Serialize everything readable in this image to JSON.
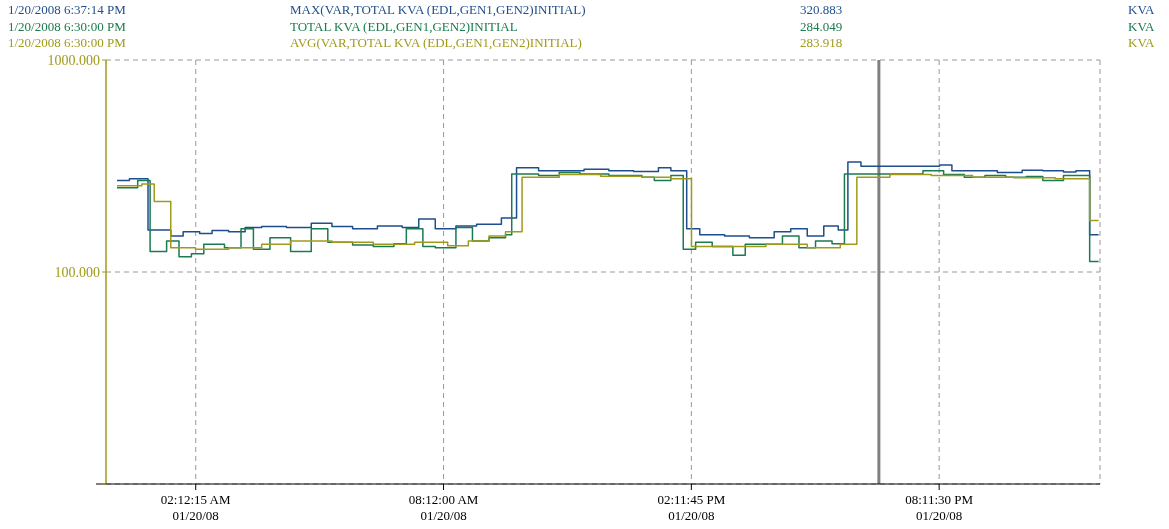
{
  "chart_data": {
    "type": "step",
    "legend": "top",
    "grid": true,
    "log": "y",
    "annotations": [
      "1/20/2008 6:37:14 PM",
      "320.883",
      "KVA",
      "1/20/2008 6:30:00 PM",
      "284.049",
      "KVA",
      "1/20/2008 6:30:00 PM",
      "283.918",
      "KVA"
    ],
    "xlim": [
      "2008-01-20T00:02",
      "2008-01-21T00:05"
    ],
    "ylim": [
      10,
      1000
    ],
    "xticks": [
      {
        "value": "2008-01-20T02:12:15",
        "label": "02:12:15 AM\n01/20/08"
      },
      {
        "value": "2008-01-20T08:12:00",
        "label": "08:12:00 AM\n01/20/08"
      },
      {
        "value": "2008-01-20T14:11:45",
        "label": "02:11:45 PM\n01/20/08"
      },
      {
        "value": "2008-01-20T20:11:30",
        "label": "08:11:30 PM\n01/20/08"
      }
    ],
    "yticks": [
      {
        "value": 10,
        "label": null
      },
      {
        "value": 100,
        "label": "100.000"
      },
      {
        "value": 1000,
        "label": "1000.000"
      }
    ],
    "ref_lines": [
      {
        "axis": "x",
        "value": "2008-01-20T18:44",
        "color": "#808080"
      }
    ],
    "series": [
      {
        "name": "MAX(VAR,TOTAL KVA (EDL,GEN1,GEN2)INITIAL)",
        "color": "#1f4e8c",
        "x": [
          "2008-01-20T00:18",
          "2008-01-20T00:36",
          "2008-01-20T00:54",
          "2008-01-20T01:03",
          "2008-01-20T01:36",
          "2008-01-20T01:54",
          "2008-01-20T02:18",
          "2008-01-20T02:36",
          "2008-01-20T03:00",
          "2008-01-20T03:24",
          "2008-01-20T03:48",
          "2008-01-20T04:24",
          "2008-01-20T05:00",
          "2008-01-20T05:30",
          "2008-01-20T06:00",
          "2008-01-20T06:36",
          "2008-01-20T07:12",
          "2008-01-20T07:36",
          "2008-01-20T08:00",
          "2008-01-20T08:30",
          "2008-01-20T09:00",
          "2008-01-20T09:36",
          "2008-01-20T09:58",
          "2008-01-20T10:30",
          "2008-01-20T11:00",
          "2008-01-20T11:36",
          "2008-01-20T12:12",
          "2008-01-20T12:48",
          "2008-01-20T13:24",
          "2008-01-20T13:42",
          "2008-01-20T14:05",
          "2008-01-20T14:24",
          "2008-01-20T15:00",
          "2008-01-20T15:36",
          "2008-01-20T16:12",
          "2008-01-20T16:36",
          "2008-01-20T17:00",
          "2008-01-20T17:24",
          "2008-01-20T17:45",
          "2008-01-20T17:59",
          "2008-01-20T18:18",
          "2008-01-20T18:54",
          "2008-01-20T19:36",
          "2008-01-20T20:12",
          "2008-01-20T20:30",
          "2008-01-20T21:00",
          "2008-01-20T21:36",
          "2008-01-20T22:12",
          "2008-01-20T22:42",
          "2008-01-20T23:12",
          "2008-01-20T23:30",
          "2008-01-20T23:50",
          "2008-01-21T00:03"
        ],
        "values": [
          270,
          275,
          275,
          158,
          148,
          155,
          152,
          157,
          155,
          162,
          164,
          162,
          170,
          164,
          160,
          165,
          162,
          178,
          160,
          165,
          168,
          180,
          310,
          300,
          300,
          305,
          300,
          298,
          310,
          300,
          160,
          150,
          148,
          145,
          155,
          160,
          148,
          165,
          158,
          330,
          315,
          315,
          315,
          320,
          300,
          300,
          295,
          302,
          300,
          296,
          300,
          150,
          150
        ]
      },
      {
        "name": "TOTAL KVA (EDL,GEN1,GEN2)INITIAL",
        "color": "#1a7a50",
        "x": [
          "2008-01-20T00:18",
          "2008-01-20T00:48",
          "2008-01-20T01:06",
          "2008-01-20T01:30",
          "2008-01-20T01:48",
          "2008-01-20T02:06",
          "2008-01-20T02:24",
          "2008-01-20T02:54",
          "2008-01-20T03:18",
          "2008-01-20T03:36",
          "2008-01-20T04:00",
          "2008-01-20T04:30",
          "2008-01-20T05:00",
          "2008-01-20T05:24",
          "2008-01-20T06:00",
          "2008-01-20T06:30",
          "2008-01-20T07:00",
          "2008-01-20T07:18",
          "2008-01-20T07:42",
          "2008-01-20T08:00",
          "2008-01-20T08:30",
          "2008-01-20T08:54",
          "2008-01-20T09:18",
          "2008-01-20T09:42",
          "2008-01-20T09:51",
          "2008-01-20T10:30",
          "2008-01-20T11:00",
          "2008-01-20T11:30",
          "2008-01-20T12:12",
          "2008-01-20T13:00",
          "2008-01-20T13:18",
          "2008-01-20T13:42",
          "2008-01-20T14:00",
          "2008-01-20T14:18",
          "2008-01-20T14:42",
          "2008-01-20T15:12",
          "2008-01-20T15:30",
          "2008-01-20T16:00",
          "2008-01-20T16:24",
          "2008-01-20T16:48",
          "2008-01-20T17:12",
          "2008-01-20T17:36",
          "2008-01-20T17:54",
          "2008-01-20T18:30",
          "2008-01-20T19:12",
          "2008-01-20T19:48",
          "2008-01-20T20:18",
          "2008-01-20T20:48",
          "2008-01-20T21:18",
          "2008-01-20T21:48",
          "2008-01-20T22:18",
          "2008-01-20T22:42",
          "2008-01-20T23:12",
          "2008-01-20T23:50",
          "2008-01-21T00:03"
        ],
        "values": [
          250,
          270,
          125,
          140,
          118,
          122,
          135,
          130,
          160,
          128,
          145,
          125,
          160,
          138,
          134,
          132,
          136,
          160,
          132,
          130,
          162,
          140,
          145,
          150,
          290,
          285,
          295,
          290,
          285,
          280,
          270,
          285,
          128,
          138,
          132,
          120,
          135,
          135,
          148,
          130,
          140,
          136,
          290,
          290,
          290,
          300,
          288,
          280,
          285,
          280,
          282,
          270,
          285,
          112,
          112
        ]
      },
      {
        "name": "AVG(VAR,TOTAL KVA (EDL,GEN1,GEN2)INITIAL)",
        "color": "#a09a1a",
        "x": [
          "2008-01-20T00:18",
          "2008-01-20T00:54",
          "2008-01-20T01:12",
          "2008-01-20T01:36",
          "2008-01-20T02:12",
          "2008-01-20T03:00",
          "2008-01-20T03:48",
          "2008-01-20T04:30",
          "2008-01-20T05:30",
          "2008-01-20T06:30",
          "2008-01-20T07:30",
          "2008-01-20T08:18",
          "2008-01-20T08:48",
          "2008-01-20T09:18",
          "2008-01-20T09:42",
          "2008-01-20T10:06",
          "2008-01-20T11:00",
          "2008-01-20T12:00",
          "2008-01-20T13:00",
          "2008-01-20T13:42",
          "2008-01-20T14:12",
          "2008-01-20T15:00",
          "2008-01-20T16:00",
          "2008-01-20T17:00",
          "2008-01-20T17:48",
          "2008-01-20T18:12",
          "2008-01-20T19:00",
          "2008-01-20T20:00",
          "2008-01-20T21:00",
          "2008-01-20T22:00",
          "2008-01-20T23:00",
          "2008-01-20T23:50",
          "2008-01-21T00:03"
        ],
        "values": [
          255,
          260,
          215,
          130,
          128,
          130,
          135,
          140,
          138,
          135,
          138,
          133,
          140,
          148,
          155,
          280,
          288,
          283,
          280,
          275,
          132,
          132,
          135,
          130,
          135,
          280,
          288,
          285,
          280,
          278,
          275,
          175,
          175
        ]
      }
    ]
  }
}
